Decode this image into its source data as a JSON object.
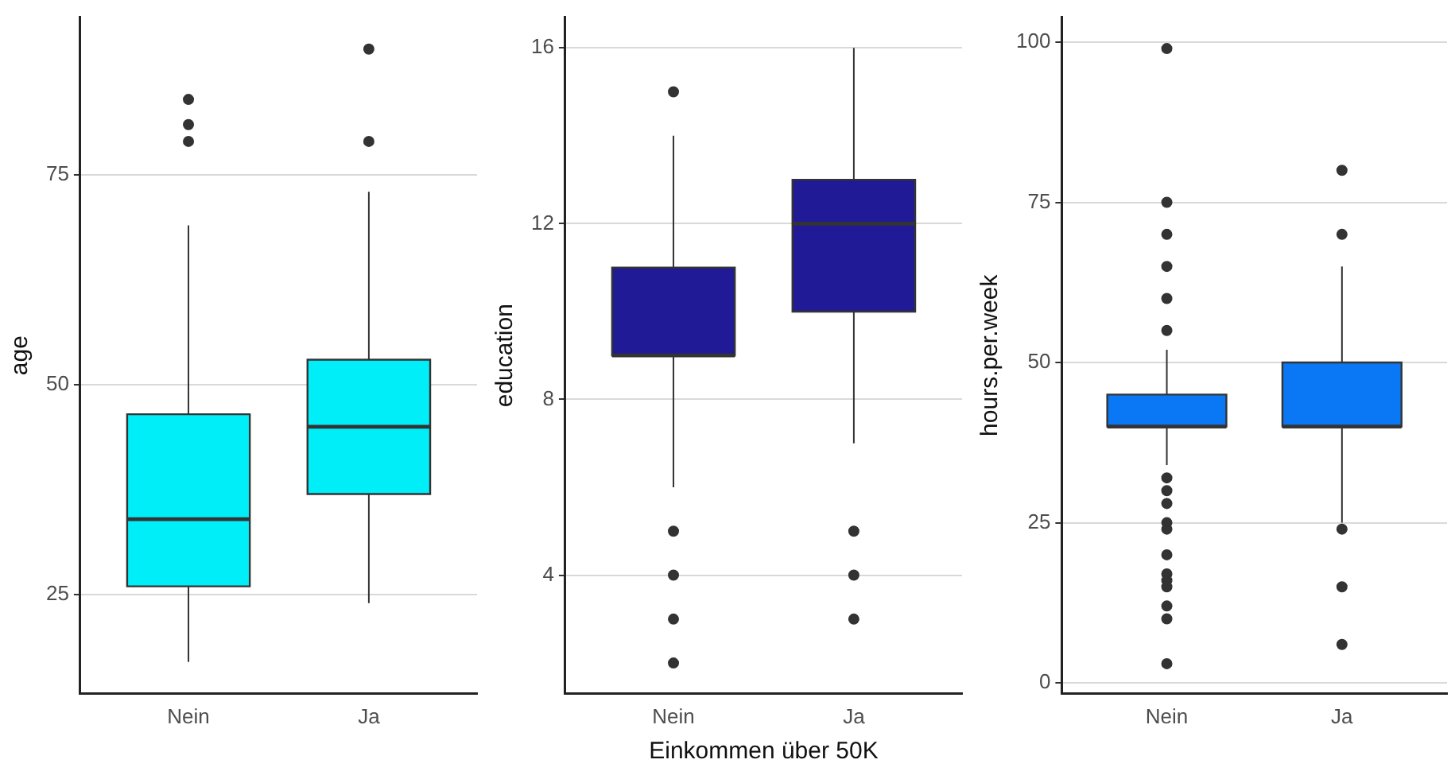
{
  "chart_data": [
    {
      "type": "box",
      "categories": [
        "Nein",
        "Ja"
      ],
      "ylabel": "age",
      "ylim": [
        13.2,
        93.8
      ],
      "yticks": [
        25,
        50,
        75
      ],
      "grid": "y",
      "series": [
        {
          "color": "#00eef8",
          "boxes": [
            {
              "low": 17,
              "q1": 26,
              "median": 34,
              "q3": 46.5,
              "high": 69,
              "outliers": [
                84,
                81,
                79
              ]
            },
            {
              "low": 24,
              "q1": 37,
              "median": 45,
              "q3": 53,
              "high": 73,
              "outliers": [
                90,
                79
              ]
            }
          ]
        }
      ]
    },
    {
      "type": "box",
      "categories": [
        "Nein",
        "Ja"
      ],
      "xlabel": "Einkommen über 50K",
      "ylabel": "education",
      "ylim": [
        1.3,
        16.7
      ],
      "yticks": [
        4,
        8,
        12,
        16
      ],
      "grid": "y",
      "series": [
        {
          "color": "#201a96",
          "boxes": [
            {
              "low": 6,
              "q1": 9,
              "median": 9,
              "q3": 11,
              "high": 14,
              "outliers": [
                15,
                5,
                4,
                3,
                2
              ]
            },
            {
              "low": 7,
              "q1": 10,
              "median": 12,
              "q3": 13,
              "high": 16,
              "outliers": [
                5,
                4,
                3
              ]
            }
          ]
        }
      ]
    },
    {
      "type": "box",
      "categories": [
        "Nein",
        "Ja"
      ],
      "ylabel": "hours.per.week",
      "ylim": [
        -1.7,
        103.9
      ],
      "yticks": [
        0,
        25,
        50,
        75,
        100
      ],
      "grid": "y",
      "series": [
        {
          "color": "#0a78f5",
          "boxes": [
            {
              "low": 34,
              "q1": 40,
              "median": 40,
              "q3": 45,
              "high": 52,
              "outliers": [
                99,
                75,
                70,
                65,
                60,
                55,
                32,
                30,
                28,
                25,
                24,
                20,
                17,
                16,
                15,
                12,
                10,
                3
              ]
            },
            {
              "low": 25,
              "q1": 40,
              "median": 40,
              "q3": 50,
              "high": 65,
              "outliers": [
                80,
                70,
                24,
                15,
                6
              ]
            }
          ]
        }
      ]
    }
  ]
}
